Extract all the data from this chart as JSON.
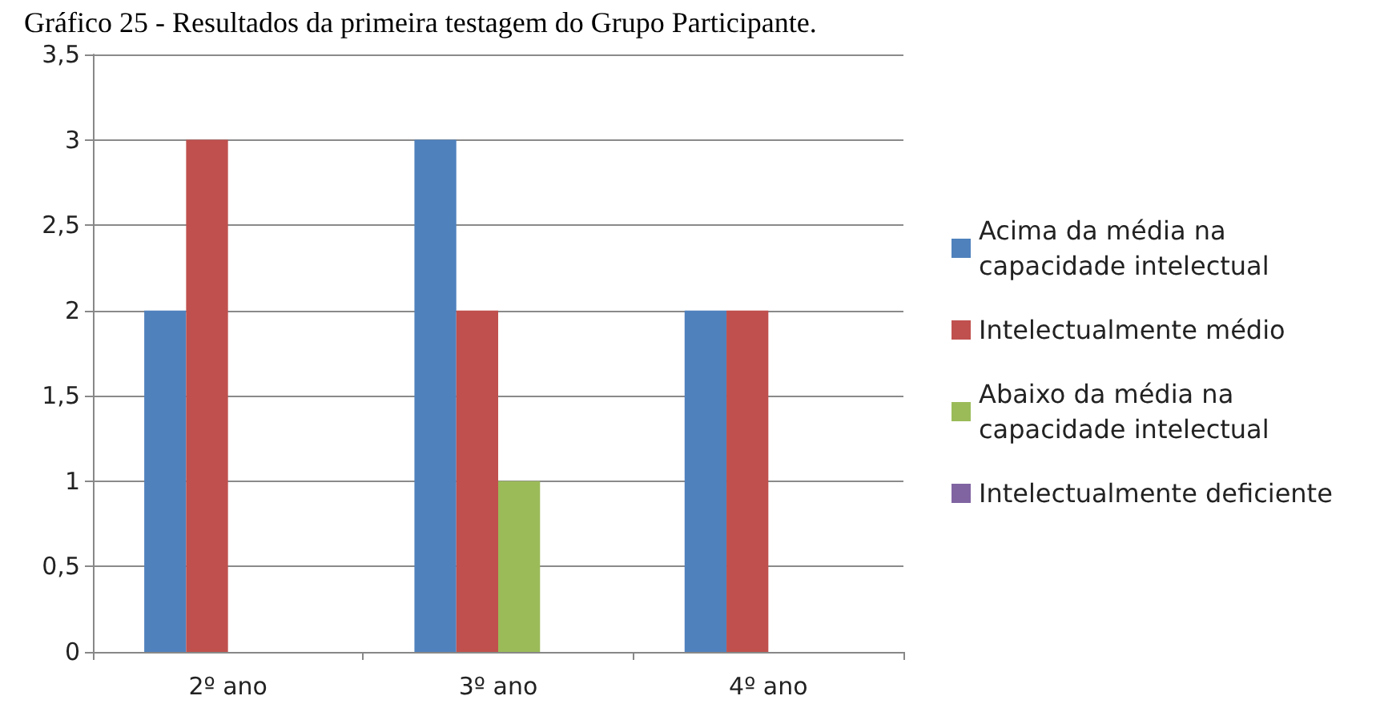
{
  "chart_data": {
    "type": "bar",
    "title": "Gráfico 25 - Resultados da primeira testagem do Grupo Participante.",
    "categories": [
      "2º ano",
      "3º ano",
      "4º ano"
    ],
    "series": [
      {
        "name": "Acima da média na capacidade intelectual",
        "color": "#4f81bd",
        "values": [
          2,
          3,
          2
        ]
      },
      {
        "name": "Intelectualmente médio",
        "color": "#c0504d",
        "values": [
          3,
          2,
          2
        ]
      },
      {
        "name": "Abaixo da média na capacidade intelectual",
        "color": "#9bbb59",
        "values": [
          0,
          1,
          0
        ]
      },
      {
        "name": "Intelectualmente deficiente",
        "color": "#8064a2",
        "values": [
          0,
          0,
          0
        ]
      }
    ],
    "ylim": [
      0,
      3.5
    ],
    "yticks": [
      0,
      {
        "value": 0.5,
        "label": "0,5"
      },
      1,
      {
        "value": 1.5,
        "label": "1,5"
      },
      2,
      {
        "value": 2.5,
        "label": "2,5"
      },
      3,
      {
        "value": 3.5,
        "label": "3,5"
      }
    ],
    "grid": "y",
    "legend": "right"
  }
}
